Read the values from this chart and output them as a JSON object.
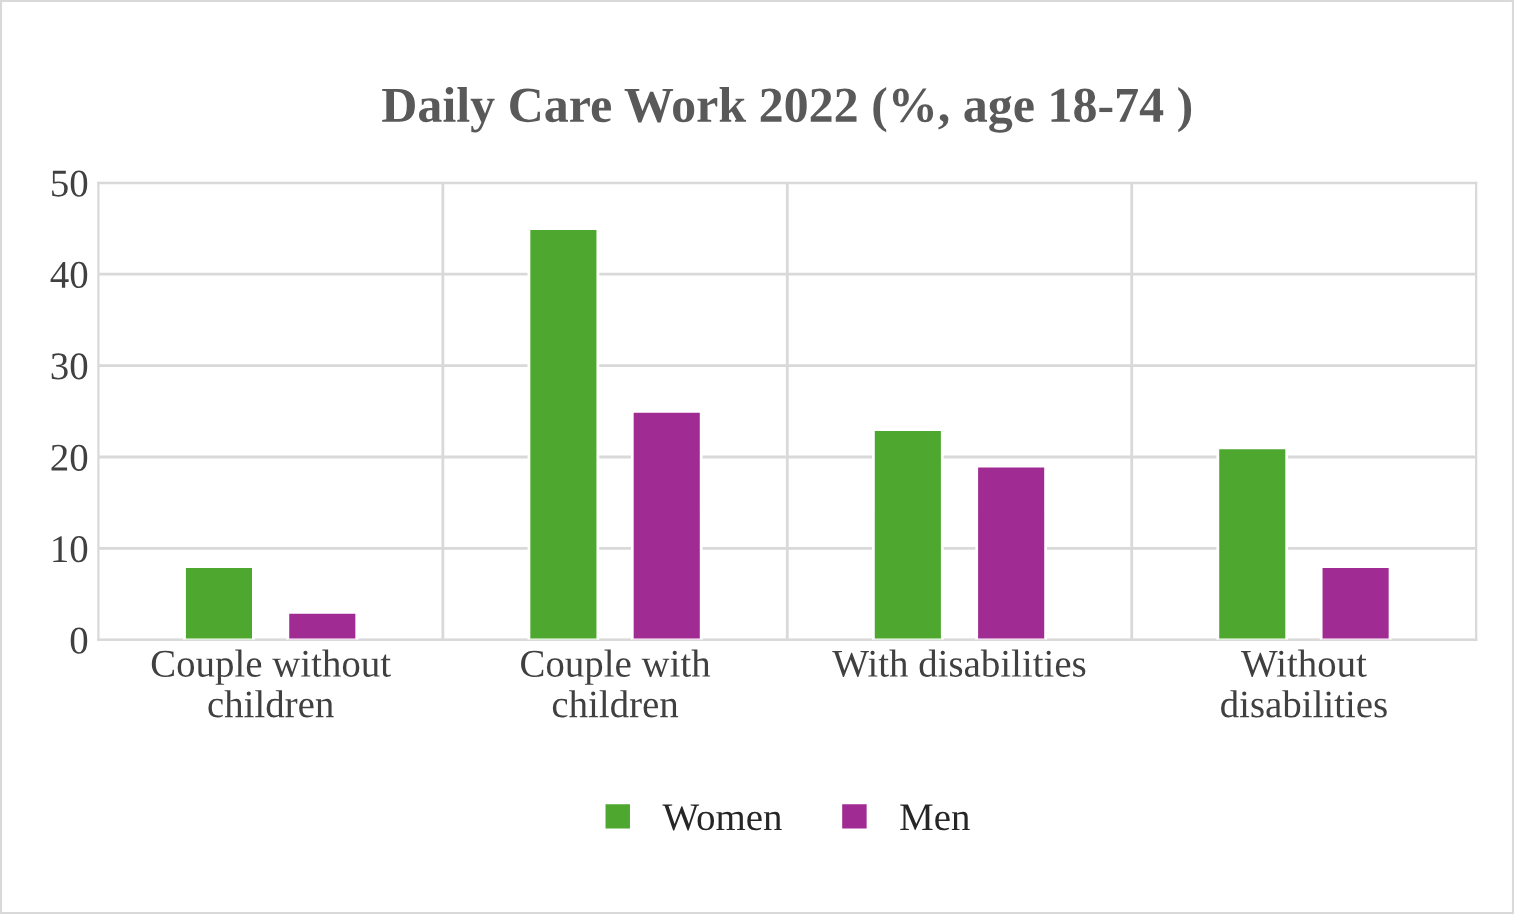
{
  "chart_data": {
    "type": "bar",
    "title": "Daily Care Work 2022 (%, age 18-74 )",
    "categories": [
      "Couple without\nchildren",
      "Couple with\nchildren",
      "With disabilities",
      "Without\ndisabilities"
    ],
    "series": [
      {
        "name": "Women",
        "color": "#4ea72e",
        "values": [
          8,
          45,
          23,
          21
        ]
      },
      {
        "name": "Men",
        "color": "#a02b93",
        "values": [
          3,
          25,
          19,
          8
        ]
      }
    ],
    "ylim": [
      0,
      50
    ],
    "yticks": [
      0,
      10,
      20,
      30,
      40,
      50
    ],
    "grid": true,
    "legend": "bottom"
  }
}
